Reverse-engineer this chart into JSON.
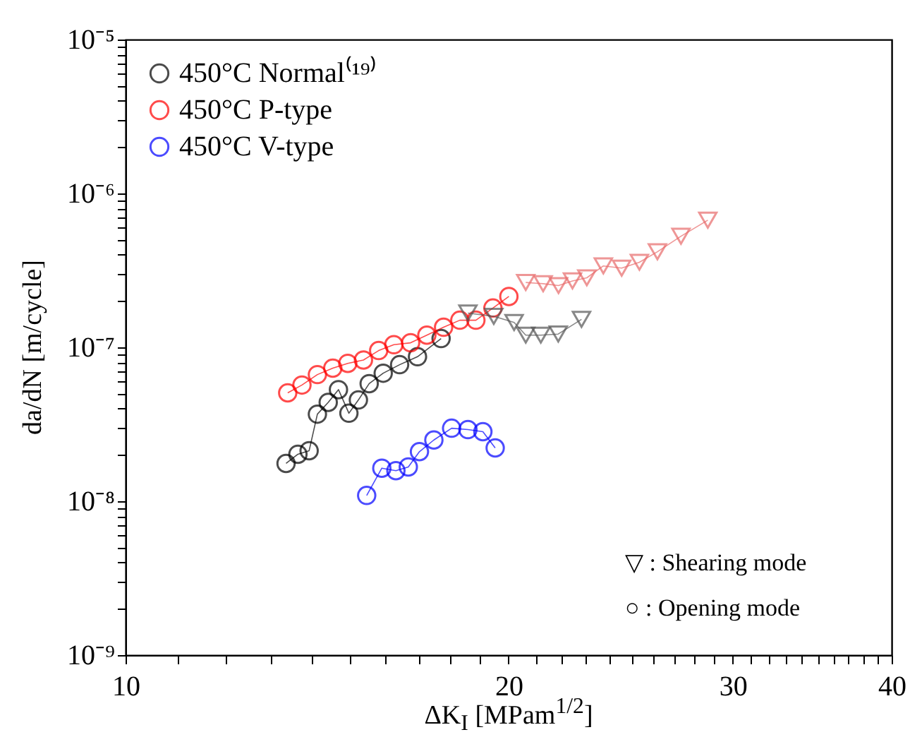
{
  "chart_data": {
    "type": "line",
    "xlabel": "ΔK$_{I}$ [MPam$^{1/2}$]",
    "ylabel": "da/dN [m/cycle]",
    "log": "xy",
    "grid": false,
    "legend": "top left",
    "marker": "circle",
    "xlim": [
      10,
      40
    ],
    "ylim": [
      1e-09,
      1e-05
    ],
    "xticks": [
      10,
      {
        "value": 11,
        "label": null
      },
      {
        "value": 12,
        "label": null
      },
      {
        "value": 13,
        "label": null
      },
      {
        "value": 14,
        "label": null
      },
      {
        "value": 15,
        "label": null
      },
      {
        "value": 16,
        "label": null
      },
      {
        "value": 17,
        "label": null
      },
      {
        "value": 18,
        "label": null
      },
      {
        "value": 19,
        "label": null
      },
      20,
      {
        "value": 21,
        "label": null
      },
      {
        "value": 22,
        "label": null
      },
      {
        "value": 23,
        "label": null
      },
      {
        "value": 24,
        "label": null
      },
      {
        "value": 25,
        "label": null
      },
      {
        "value": 26,
        "label": null
      },
      {
        "value": 27,
        "label": null
      },
      {
        "value": 28,
        "label": null
      },
      {
        "value": 29,
        "label": null
      },
      30,
      {
        "value": 31,
        "label": null
      },
      {
        "value": 32,
        "label": null
      },
      {
        "value": 33,
        "label": null
      },
      {
        "value": 34,
        "label": null
      },
      {
        "value": 35,
        "label": null
      },
      {
        "value": 36,
        "label": null
      },
      {
        "value": 37,
        "label": null
      },
      {
        "value": 38,
        "label": null
      },
      {
        "value": 39,
        "label": null
      },
      40
    ],
    "yticks": [
      {
        "value": 1e-09,
        "label": "10⁻⁹"
      },
      {
        "value": 2e-09,
        "label": null
      },
      {
        "value": 3e-09,
        "label": null
      },
      {
        "value": 4e-09,
        "label": null
      },
      {
        "value": 5e-09,
        "label": null
      },
      {
        "value": 6e-09,
        "label": null
      },
      {
        "value": 7e-09,
        "label": null
      },
      {
        "value": 8e-09,
        "label": null
      },
      {
        "value": 9e-09,
        "label": null
      },
      {
        "value": 1e-08,
        "label": "10⁻⁸"
      },
      {
        "value": 2e-08,
        "label": null
      },
      {
        "value": 3e-08,
        "label": null
      },
      {
        "value": 4e-08,
        "label": null
      },
      {
        "value": 5e-08,
        "label": null
      },
      {
        "value": 6e-08,
        "label": null
      },
      {
        "value": 7e-08,
        "label": null
      },
      {
        "value": 8e-08,
        "label": null
      },
      {
        "value": 9e-08,
        "label": null
      },
      {
        "value": 1e-07,
        "label": "10⁻⁷"
      },
      {
        "value": 2e-07,
        "label": null
      },
      {
        "value": 3e-07,
        "label": null
      },
      {
        "value": 4e-07,
        "label": null
      },
      {
        "value": 5e-07,
        "label": null
      },
      {
        "value": 6e-07,
        "label": null
      },
      {
        "value": 7e-07,
        "label": null
      },
      {
        "value": 8e-07,
        "label": null
      },
      {
        "value": 9e-07,
        "label": null
      },
      {
        "value": 1e-06,
        "label": "10⁻⁶"
      },
      {
        "value": 2e-06,
        "label": null
      },
      {
        "value": 3e-06,
        "label": null
      },
      {
        "value": 4e-06,
        "label": null
      },
      {
        "value": 5e-06,
        "label": null
      },
      {
        "value": 6e-06,
        "label": null
      },
      {
        "value": 7e-06,
        "label": null
      },
      {
        "value": 8e-06,
        "label": null
      },
      {
        "value": 9e-06,
        "label": null
      },
      {
        "value": 1e-05,
        "label": "10⁻⁵"
      }
    ],
    "annotations": [
      "▽ : Shearing mode",
      "○ : Opening mode"
    ],
    "series": [
      {
        "name": "450°C Normal⁽¹⁹⁾",
        "color": "#000000",
        "x": [
          13.37,
          13.66,
          13.94,
          14.15,
          14.43,
          14.7,
          14.98,
          15.24,
          15.54,
          15.94,
          16.42,
          16.96,
          17.7
        ],
        "values": [
          1.76e-08,
          2.02e-08,
          2.13e-08,
          3.68e-08,
          4.39e-08,
          5.31e-08,
          3.73e-08,
          4.55e-08,
          5.81e-08,
          6.79e-08,
          7.71e-08,
          8.69e-08,
          1.14e-07
        ]
      },
      {
        "name": "450°C P-type",
        "color": "#ff0000",
        "x": [
          13.41,
          13.76,
          14.15,
          14.55,
          14.95,
          15.38,
          15.81,
          16.25,
          16.75,
          17.25,
          17.78,
          18.31,
          18.85,
          19.44,
          20.01
        ],
        "values": [
          5.06e-08,
          5.69e-08,
          6.65e-08,
          7.33e-08,
          7.87e-08,
          8.27e-08,
          9.53e-08,
          1.04e-07,
          1.07e-07,
          1.2e-07,
          1.35e-07,
          1.5e-07,
          1.5e-07,
          1.8e-07,
          2.14e-07
        ]
      },
      {
        "name": "450°C  V-type",
        "color": "#0000ff",
        "x": [
          15.47,
          15.9,
          16.31,
          16.68,
          17.02,
          17.47,
          18.04,
          18.58,
          19.09,
          19.52
        ],
        "values": [
          1.09e-08,
          1.64e-08,
          1.58e-08,
          1.67e-08,
          2.1e-08,
          2.5e-08,
          2.98e-08,
          2.92e-08,
          2.83e-08,
          2.22e-08
        ]
      },
      {
        "color": "#555555",
        "marker": "triangle",
        "x": [
          18.58,
          19.47,
          20.2,
          20.63,
          21.2,
          21.88,
          22.82
        ],
        "values": [
          1.67e-07,
          1.59e-07,
          1.45e-07,
          1.2e-07,
          1.2e-07,
          1.22e-07,
          1.52e-07
        ]
      },
      {
        "color": "#e86a6a",
        "marker": "triangle",
        "x": [
          20.63,
          21.29,
          21.89,
          22.45,
          23.04,
          23.74,
          24.54,
          25.34,
          26.18,
          27.32,
          28.68
        ],
        "values": [
          2.64e-07,
          2.59e-07,
          2.52e-07,
          2.7e-07,
          2.83e-07,
          3.38e-07,
          3.27e-07,
          3.57e-07,
          4.18e-07,
          5.27e-07,
          6.7e-07
        ]
      }
    ]
  }
}
